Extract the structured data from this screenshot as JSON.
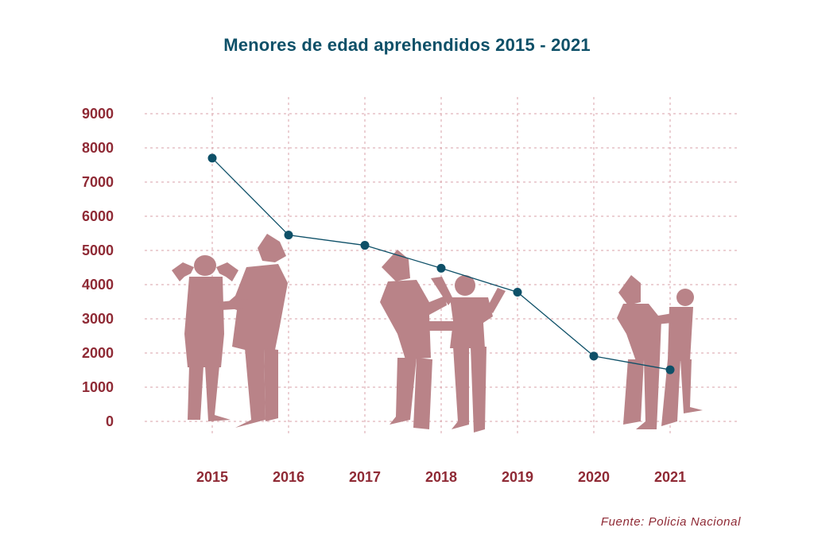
{
  "chart_data": {
    "type": "line",
    "title": "Menores de edad aprehendidos 2015 - 2021",
    "categories": [
      "2015",
      "2016",
      "2017",
      "2018",
      "2019",
      "2020",
      "2021"
    ],
    "series": [
      {
        "values": [
          7700,
          5450,
          5150,
          4480,
          3780,
          1910,
          1510
        ]
      }
    ],
    "y_ticks": [
      "9000",
      "8000",
      "7000",
      "6000",
      "5000",
      "4000",
      "3000",
      "2000",
      "1000",
      "0"
    ],
    "ylim": [
      0,
      9000
    ],
    "xlabel": "",
    "ylabel": "",
    "grid": true,
    "line_color": "#0e5068",
    "axis_text_color": "#8f2a35",
    "grid_color": "#d9a2a8",
    "silhouette_color": "#b98388",
    "source": "Fuente: Policia Nacional"
  }
}
